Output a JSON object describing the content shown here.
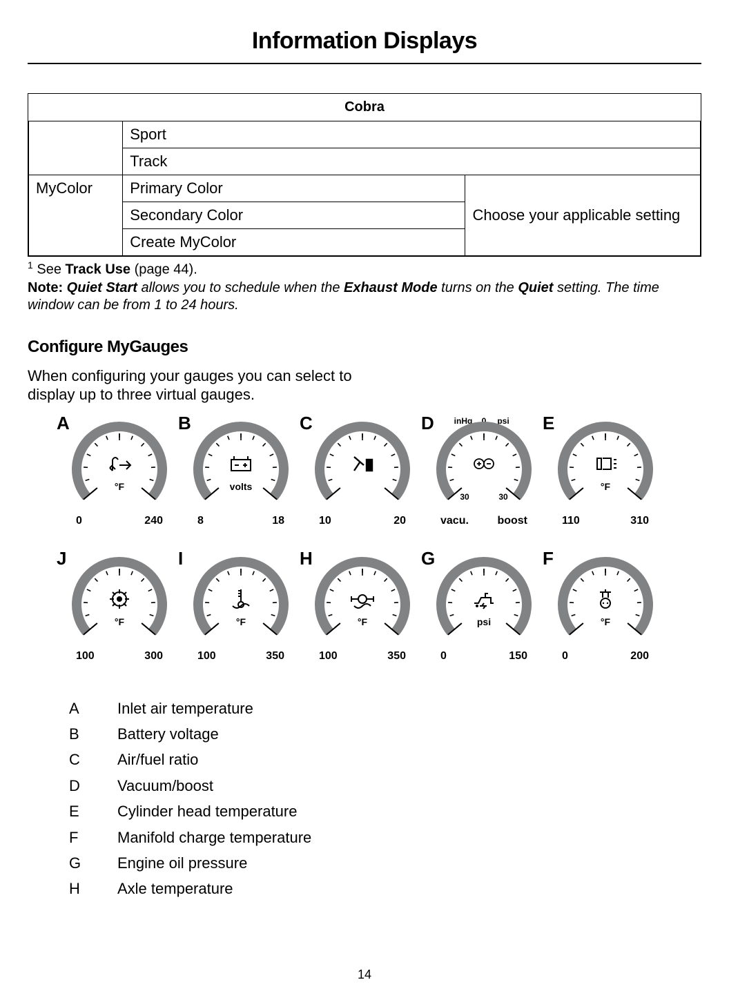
{
  "title": "Information Displays",
  "table": {
    "header": "Cobra",
    "rows": [
      {
        "c0": "",
        "c1": "Sport",
        "c2": ""
      },
      {
        "c0": "",
        "c1": "Track",
        "c2": ""
      },
      {
        "c0": "MyColor",
        "c1": "Primary Color",
        "c2": ""
      },
      {
        "c0": "",
        "c1": "Secondary Color",
        "c2": "Choose your applicable setting"
      },
      {
        "c0": "",
        "c1": "Create MyColor",
        "c2": ""
      }
    ],
    "col_widths": [
      "14%",
      "51%",
      "35%"
    ]
  },
  "footnote": {
    "sup": "1",
    "pre": " See ",
    "bold": "Track Use",
    "post": " (page 44)."
  },
  "note": {
    "lead": "Note:",
    "t1": " ",
    "bi1": "Quiet Start",
    "t2": " allows you to schedule when the ",
    "bi2": "Exhaust Mode",
    "t3": " turns on the ",
    "bi3": "Quiet",
    "t4": " setting. The time window can be from 1 to 24 hours."
  },
  "section": {
    "heading": "Configure MyGauges",
    "paragraph": "When configuring your gauges you can select to display up to three virtual gauges."
  },
  "gauges": {
    "arc_color": "#808284",
    "tick_color": "#000000",
    "top": [
      {
        "letter": "A",
        "unit": "°F",
        "lo": "0",
        "hi": "240",
        "icon": "inlet"
      },
      {
        "letter": "B",
        "unit": "volts",
        "lo": "8",
        "hi": "18",
        "icon": "battery"
      },
      {
        "letter": "C",
        "unit": "",
        "lo": "10",
        "hi": "20",
        "icon": "afr"
      },
      {
        "letter": "D",
        "unit": "",
        "lo": "vacu.",
        "hi": "boost",
        "icon": "boost",
        "top_labels": {
          "l": "inHg",
          "c": "0",
          "r": "psi"
        },
        "bottom_labels": {
          "l": "30",
          "r": "30"
        }
      },
      {
        "letter": "E",
        "unit": "°F",
        "lo": "110",
        "hi": "310",
        "icon": "chtemp"
      }
    ],
    "bottom": [
      {
        "letter": "J",
        "unit": "°F",
        "lo": "100",
        "hi": "300",
        "icon": "trans"
      },
      {
        "letter": "I",
        "unit": "°F",
        "lo": "100",
        "hi": "350",
        "icon": "oiltemp"
      },
      {
        "letter": "H",
        "unit": "°F",
        "lo": "100",
        "hi": "350",
        "icon": "axle"
      },
      {
        "letter": "G",
        "unit": "psi",
        "lo": "0",
        "hi": "150",
        "icon": "oilpress"
      },
      {
        "letter": "F",
        "unit": "°F",
        "lo": "0",
        "hi": "200",
        "icon": "manifold"
      }
    ]
  },
  "legend": [
    {
      "k": "A",
      "v": "Inlet air temperature"
    },
    {
      "k": "B",
      "v": "Battery voltage"
    },
    {
      "k": "C",
      "v": "Air/fuel ratio"
    },
    {
      "k": "D",
      "v": "Vacuum/boost"
    },
    {
      "k": "E",
      "v": "Cylinder head temperature"
    },
    {
      "k": "F",
      "v": "Manifold charge temperature"
    },
    {
      "k": "G",
      "v": "Engine oil pressure"
    },
    {
      "k": "H",
      "v": "Axle temperature"
    }
  ],
  "page_number": "14"
}
